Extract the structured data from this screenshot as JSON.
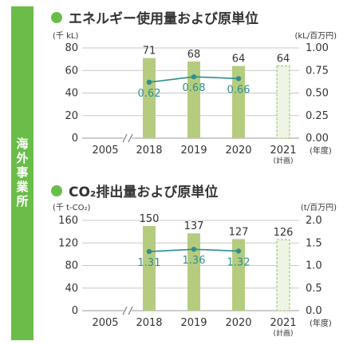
{
  "sidebar": {
    "label": "海外事業所"
  },
  "chart_data": [
    {
      "type": "bar",
      "title": "エネルギー使用量および原単位",
      "ylabel_left": "(千 kL)",
      "ylabel_right": "(kL/百万円)",
      "xunit": "(年度)",
      "categories": [
        "2005",
        "2018",
        "2019",
        "2020",
        "2021"
      ],
      "category_sublabels": [
        "",
        "",
        "",
        "",
        "(計画)"
      ],
      "ylim": [
        0,
        80
      ],
      "yticks": [
        0,
        20,
        40,
        60,
        80
      ],
      "y2lim": [
        0,
        1.0
      ],
      "y2ticks": [
        "0.00",
        "0.25",
        "0.50",
        "0.75",
        "1.00"
      ],
      "bars": [
        null,
        71,
        68,
        64,
        64
      ],
      "bar_labels": [
        "",
        "71",
        "68",
        "64",
        "64"
      ],
      "planned": [
        false,
        false,
        false,
        false,
        true
      ],
      "line": [
        null,
        0.62,
        0.68,
        0.66,
        null
      ],
      "line_labels": [
        "",
        "0.62",
        "0.68",
        "0.66",
        ""
      ],
      "axis_break": true,
      "colors": {
        "bar": "#b5cc7f",
        "planned_fill": "#eef5e4",
        "planned_stroke": "#8fbf5a",
        "line": "#2f8f8f",
        "line_label": "#2f8f8f"
      }
    },
    {
      "type": "bar",
      "title": "CO₂排出量および原単位",
      "ylabel_left": "(千 t-CO₂)",
      "ylabel_right": "(t/百万円)",
      "xunit": "(年度)",
      "categories": [
        "2005",
        "2018",
        "2019",
        "2020",
        "2021"
      ],
      "category_sublabels": [
        "",
        "",
        "",
        "",
        "(計画)"
      ],
      "ylim": [
        0,
        160
      ],
      "yticks": [
        0,
        40,
        80,
        120,
        160
      ],
      "y2lim": [
        0,
        2.0
      ],
      "y2ticks": [
        "0.0",
        "0.5",
        "1.0",
        "1.5",
        "2.0"
      ],
      "bars": [
        null,
        150,
        137,
        127,
        126
      ],
      "bar_labels": [
        "",
        "150",
        "137",
        "127",
        "126"
      ],
      "planned": [
        false,
        false,
        false,
        false,
        true
      ],
      "line": [
        null,
        1.31,
        1.36,
        1.32,
        null
      ],
      "line_labels": [
        "",
        "1.31",
        "1.36",
        "1.32",
        ""
      ],
      "axis_break": true,
      "colors": {
        "bar": "#b5cc7f",
        "planned_fill": "#eef5e4",
        "planned_stroke": "#8fbf5a",
        "line": "#2f8f8f",
        "line_label": "#2f8f8f"
      }
    }
  ]
}
